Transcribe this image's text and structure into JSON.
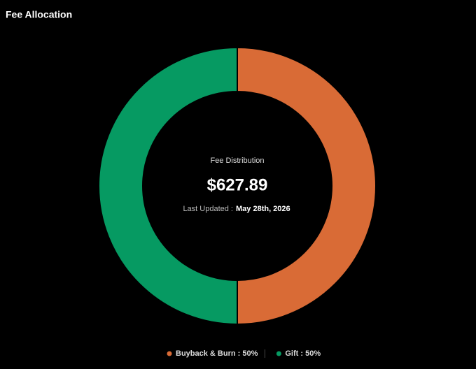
{
  "chart_data": {
    "type": "pie",
    "title": "Fee Allocation",
    "center_label": "Fee Distribution",
    "center_value": "$627.89",
    "updated_label": "Last Updated :",
    "updated_date": "May 28th, 2026",
    "categories": [
      "Buyback & Burn : 50%",
      "Gift : 50%"
    ],
    "values": [
      50,
      50
    ],
    "colors": [
      "#d96b36",
      "#069a62"
    ],
    "donut": true
  }
}
